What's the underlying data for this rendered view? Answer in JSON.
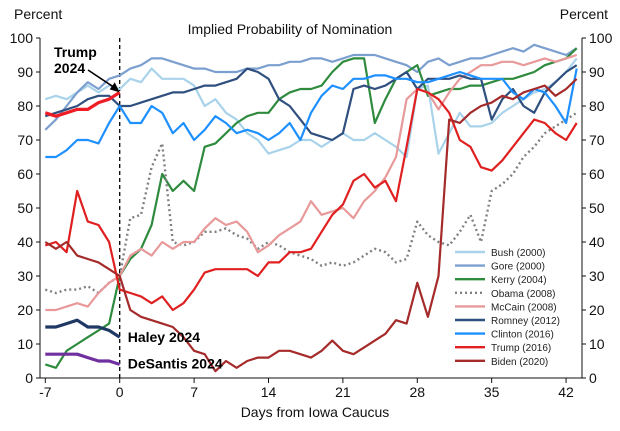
{
  "chart_data": {
    "type": "line",
    "title": "Implied Probability of Nomination",
    "xlabel": "Days from Iowa Caucus",
    "ylabel_left": "Percent",
    "ylabel_right": "Percent",
    "xlim": [
      -7.5,
      43.5
    ],
    "ylim": [
      0,
      100
    ],
    "x_ticks": [
      -7,
      0,
      7,
      14,
      21,
      28,
      35,
      42
    ],
    "y_ticks": [
      0,
      10,
      20,
      30,
      40,
      50,
      60,
      70,
      80,
      90,
      100
    ],
    "reference_line_x": 0,
    "legend_position": "lower-right",
    "series": [
      {
        "name": "Bush (2000)",
        "color": "#a9d3ea",
        "dash": false,
        "width": 2.2,
        "x": [
          -7,
          -6,
          -5,
          -4,
          -3,
          -2,
          -1,
          0,
          1,
          2,
          3,
          4,
          5,
          6,
          7,
          8,
          9,
          10,
          11,
          12,
          13,
          14,
          15,
          16,
          17,
          18,
          19,
          20,
          21,
          22,
          23,
          24,
          25,
          26,
          27,
          28,
          29,
          30,
          31,
          32,
          33,
          34,
          35,
          36,
          37,
          38,
          39,
          40,
          41,
          42,
          43
        ],
        "values": [
          82,
          83,
          82,
          84,
          86,
          84,
          86,
          85,
          88,
          87,
          91,
          88,
          88,
          88,
          86,
          80,
          82,
          78,
          76,
          72,
          70,
          66,
          67,
          68,
          70,
          70,
          68,
          70,
          72,
          70,
          70,
          72,
          70,
          68,
          65,
          85,
          86,
          66,
          72,
          78,
          74,
          74,
          75,
          78,
          80,
          82,
          84,
          85,
          87,
          90,
          94
        ]
      },
      {
        "name": "Gore (2000)",
        "color": "#7b9fcf",
        "dash": false,
        "width": 2.2,
        "x": [
          -7,
          -6,
          -5,
          -4,
          -3,
          -2,
          -1,
          0,
          1,
          2,
          3,
          4,
          5,
          6,
          7,
          8,
          9,
          10,
          11,
          12,
          13,
          14,
          15,
          16,
          17,
          18,
          19,
          20,
          21,
          22,
          23,
          24,
          25,
          26,
          27,
          28,
          29,
          30,
          31,
          32,
          33,
          34,
          35,
          36,
          37,
          38,
          39,
          40,
          41,
          42,
          43
        ],
        "values": [
          73,
          76,
          80,
          84,
          87,
          85,
          88,
          89,
          91,
          92,
          94,
          94,
          93,
          92,
          91,
          91,
          90,
          90,
          90,
          91,
          91,
          92,
          92,
          93,
          93,
          94,
          94,
          93,
          94,
          95,
          95,
          95,
          94,
          93,
          92,
          90,
          93,
          94,
          92,
          93,
          94,
          94,
          95,
          96,
          97,
          96,
          98,
          97,
          96,
          95,
          97
        ]
      },
      {
        "name": "Kerry (2004)",
        "color": "#2e8b3e",
        "dash": false,
        "width": 2.2,
        "x": [
          -7,
          -6,
          -5,
          -4,
          -3,
          -2,
          -1,
          0,
          1,
          2,
          3,
          4,
          5,
          6,
          7,
          8,
          9,
          10,
          11,
          12,
          13,
          14,
          15,
          16,
          17,
          18,
          19,
          20,
          21,
          22,
          23,
          24,
          25,
          26,
          27,
          28,
          29,
          30,
          31,
          32,
          33,
          34,
          35,
          36,
          37,
          38,
          39,
          40,
          41,
          42,
          43
        ],
        "values": [
          4,
          3,
          8,
          10,
          12,
          14,
          16,
          30,
          35,
          38,
          45,
          60,
          55,
          58,
          55,
          68,
          69,
          72,
          75,
          77,
          78,
          78,
          82,
          84,
          85,
          85,
          86,
          90,
          93,
          94,
          94,
          75,
          82,
          88,
          90,
          92,
          83,
          84,
          85,
          85,
          86,
          86,
          87,
          88,
          88,
          89,
          90,
          92,
          93,
          94,
          97
        ]
      },
      {
        "name": "Obama (2008)",
        "color": "#808080",
        "dash": true,
        "width": 2.2,
        "x": [
          -7,
          -6,
          -5,
          -4,
          -3,
          -2,
          -1,
          0,
          1,
          2,
          3,
          4,
          5,
          6,
          7,
          8,
          9,
          10,
          11,
          12,
          13,
          14,
          15,
          16,
          17,
          18,
          19,
          20,
          21,
          22,
          23,
          24,
          25,
          26,
          27,
          28,
          29,
          30,
          31,
          32,
          33,
          34,
          35,
          36,
          37,
          38,
          39,
          40,
          41,
          42,
          43
        ],
        "values": [
          26,
          25,
          26,
          26,
          27,
          25,
          28,
          30,
          47,
          48,
          62,
          69,
          40,
          39,
          40,
          43,
          43,
          44,
          42,
          41,
          38,
          40,
          39,
          37,
          36,
          35,
          33,
          34,
          33,
          34,
          36,
          38,
          37,
          34,
          35,
          46,
          42,
          40,
          39,
          43,
          48,
          40,
          55,
          57,
          60,
          65,
          68,
          72,
          74,
          76,
          78
        ]
      },
      {
        "name": "McCain (2008)",
        "color": "#e8999a",
        "dash": false,
        "width": 2.2,
        "x": [
          -7,
          -6,
          -5,
          -4,
          -3,
          -2,
          -1,
          0,
          1,
          2,
          3,
          4,
          5,
          6,
          7,
          8,
          9,
          10,
          11,
          12,
          13,
          14,
          15,
          16,
          17,
          18,
          19,
          20,
          21,
          22,
          23,
          24,
          25,
          26,
          27,
          28,
          29,
          30,
          31,
          32,
          33,
          34,
          35,
          36,
          37,
          38,
          39,
          40,
          41,
          42,
          43
        ],
        "values": [
          20,
          20,
          21,
          22,
          21,
          25,
          28,
          30,
          36,
          38,
          36,
          40,
          38,
          40,
          40,
          44,
          47,
          45,
          46,
          43,
          37,
          39,
          42,
          44,
          46,
          52,
          48,
          49,
          50,
          47,
          52,
          55,
          59,
          65,
          82,
          85,
          84,
          79,
          84,
          88,
          90,
          92,
          92,
          93,
          93,
          92,
          93,
          94,
          93,
          94,
          95
        ]
      },
      {
        "name": "Romney (2012)",
        "color": "#2f4f7f",
        "dash": false,
        "width": 2.2,
        "x": [
          -7,
          -6,
          -5,
          -4,
          -3,
          -2,
          -1,
          0,
          1,
          2,
          3,
          4,
          5,
          6,
          7,
          8,
          9,
          10,
          11,
          12,
          13,
          14,
          15,
          16,
          17,
          18,
          19,
          20,
          21,
          22,
          23,
          24,
          25,
          26,
          27,
          28,
          29,
          30,
          31,
          32,
          33,
          34,
          35,
          36,
          37,
          38,
          39,
          40,
          41,
          42,
          43
        ],
        "values": [
          77,
          78,
          79,
          80,
          82,
          83,
          83,
          80,
          80,
          81,
          82,
          83,
          84,
          84,
          85,
          86,
          86,
          87,
          88,
          91,
          90,
          88,
          82,
          80,
          76,
          72,
          71,
          70,
          72,
          85,
          86,
          85,
          86,
          88,
          90,
          85,
          88,
          88,
          88,
          89,
          88,
          88,
          76,
          82,
          85,
          80,
          78,
          84,
          87,
          90,
          92
        ]
      },
      {
        "name": "Clinton (2016)",
        "color": "#1e90ff",
        "dash": false,
        "width": 2.2,
        "x": [
          -7,
          -6,
          -5,
          -4,
          -3,
          -2,
          -1,
          0,
          1,
          2,
          3,
          4,
          5,
          6,
          7,
          8,
          9,
          10,
          11,
          12,
          13,
          14,
          15,
          16,
          17,
          18,
          19,
          20,
          21,
          22,
          23,
          24,
          25,
          26,
          27,
          28,
          29,
          30,
          31,
          32,
          33,
          34,
          35,
          36,
          37,
          38,
          39,
          40,
          41,
          42,
          43
        ],
        "values": [
          65,
          65,
          67,
          70,
          70,
          69,
          75,
          80,
          75,
          75,
          80,
          78,
          72,
          75,
          70,
          73,
          77,
          75,
          72,
          73,
          72,
          70,
          72,
          75,
          70,
          78,
          83,
          86,
          85,
          88,
          88,
          89,
          89,
          88,
          88,
          87,
          87,
          88,
          89,
          90,
          89,
          88,
          88,
          88,
          84,
          82,
          85,
          84,
          80,
          75,
          91
        ]
      },
      {
        "name": "Trump (2016)",
        "color": "#e02020",
        "dash": false,
        "width": 2.2,
        "x": [
          -7,
          -6,
          -5,
          -4,
          -3,
          -2,
          -1,
          0,
          1,
          2,
          3,
          4,
          5,
          6,
          7,
          8,
          9,
          10,
          11,
          12,
          13,
          14,
          15,
          16,
          17,
          18,
          19,
          20,
          21,
          22,
          23,
          24,
          25,
          26,
          27,
          28,
          29,
          30,
          31,
          32,
          33,
          34,
          35,
          36,
          37,
          38,
          39,
          40,
          41,
          42,
          43
        ],
        "values": [
          39,
          40,
          37,
          55,
          46,
          45,
          40,
          26,
          25,
          24,
          22,
          24,
          20,
          22,
          26,
          31,
          32,
          32,
          32,
          32,
          30,
          34,
          34,
          37,
          37,
          38,
          43,
          48,
          51,
          58,
          60,
          56,
          58,
          52,
          68,
          85,
          84,
          82,
          78,
          70,
          68,
          62,
          61,
          64,
          68,
          72,
          76,
          75,
          72,
          70,
          75
        ]
      },
      {
        "name": "Biden (2020)",
        "color": "#a52a2a",
        "dash": false,
        "width": 2.2,
        "x": [
          -7,
          -6,
          -5,
          -4,
          -3,
          -2,
          -1,
          0,
          1,
          2,
          3,
          4,
          5,
          6,
          7,
          8,
          9,
          10,
          11,
          12,
          13,
          14,
          15,
          16,
          17,
          18,
          19,
          20,
          21,
          22,
          23,
          24,
          25,
          26,
          27,
          28,
          29,
          30,
          31,
          32,
          33,
          34,
          35,
          36,
          37,
          38,
          39,
          40,
          41,
          42,
          43
        ],
        "values": [
          40,
          38,
          40,
          36,
          35,
          34,
          32,
          30,
          20,
          18,
          17,
          16,
          15,
          12,
          8,
          7,
          2,
          5,
          3,
          5,
          6,
          6,
          8,
          8,
          7,
          6,
          8,
          11,
          8,
          7,
          9,
          11,
          13,
          17,
          16,
          28,
          18,
          30,
          76,
          75,
          78,
          80,
          81,
          83,
          82,
          84,
          85,
          86,
          83,
          85,
          88
        ]
      },
      {
        "name": "Trump 2024",
        "color": "#ee1c25",
        "dash": false,
        "width": 3.2,
        "legend": false,
        "x": [
          -7,
          -6,
          -5,
          -4,
          -3,
          -2,
          -1,
          0
        ],
        "values": [
          78,
          77,
          78,
          79,
          79,
          81,
          82,
          84
        ]
      },
      {
        "name": "Haley 2024",
        "color": "#1f3864",
        "dash": false,
        "width": 3.2,
        "legend": false,
        "x": [
          -7,
          -6,
          -5,
          -4,
          -3,
          -2,
          -1,
          0
        ],
        "values": [
          15,
          15,
          16,
          17,
          15,
          15,
          14,
          12
        ]
      },
      {
        "name": "DeSantis 2024",
        "color": "#7030a0",
        "dash": false,
        "width": 3.2,
        "legend": false,
        "x": [
          -7,
          -6,
          -5,
          -4,
          -3,
          -2,
          -1,
          0
        ],
        "values": [
          7,
          7,
          7,
          7,
          6,
          5,
          5,
          4
        ]
      }
    ],
    "annotations": [
      {
        "text_lines": [
          "Trump",
          "2024"
        ],
        "series": "Trump 2024"
      },
      {
        "text_lines": [
          "Haley 2024"
        ],
        "series": "Haley 2024"
      },
      {
        "text_lines": [
          "DeSantis 2024"
        ],
        "series": "DeSantis 2024"
      }
    ]
  }
}
